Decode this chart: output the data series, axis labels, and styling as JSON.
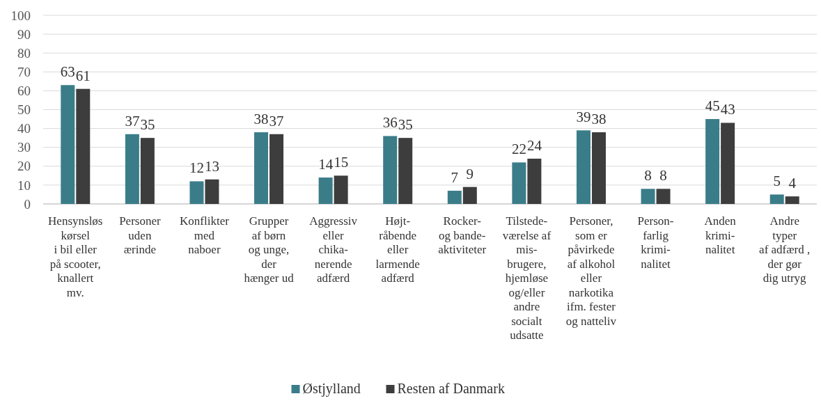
{
  "chart_data": {
    "type": "bar",
    "categories": [
      "Hensynsløs\nkørsel\ni bil eller\npå scooter,\nknallert\nmv.",
      "Personer\nuden\nærinde",
      "Konflikter\nmed\nnaboer",
      "Grupper\naf børn\nog unge,\nder\nhænger ud",
      "Aggressiv\neller\nchika-\nnerende\nadfærd",
      "Højt-\nråbende\neller\nlarmende\nadfærd",
      "Rocker-\nog bande-\naktiviteter",
      "Tilstede-\nværelse af\nmis-\nbrugere,\nhjemløse\nog/eller\nandre\nsocialt\nudsatte",
      "Personer,\nsom er\npåvirkede\naf alkohol\neller\nnarkotika\nifm. fester\nog natteliv",
      "Person-\nfarlig\nkrimi-\nnalitet",
      "Anden\nkrimi-\nnalitet",
      "Andre\ntyper\naf adfærd ,\nder gør\ndig utryg"
    ],
    "series": [
      {
        "name": "Østjylland",
        "color": "#3a7d89",
        "values": [
          63,
          37,
          12,
          38,
          14,
          36,
          7,
          22,
          39,
          8,
          45,
          5
        ]
      },
      {
        "name": "Resten af Danmark",
        "color": "#3d3d3d",
        "values": [
          61,
          35,
          13,
          37,
          15,
          35,
          9,
          24,
          38,
          8,
          43,
          4
        ]
      }
    ],
    "ylim": [
      0,
      100
    ],
    "yticks": [
      0,
      10,
      20,
      30,
      40,
      50,
      60,
      70,
      80,
      90,
      100
    ],
    "grid": "y",
    "legend": "bottom",
    "data_labels": true
  }
}
